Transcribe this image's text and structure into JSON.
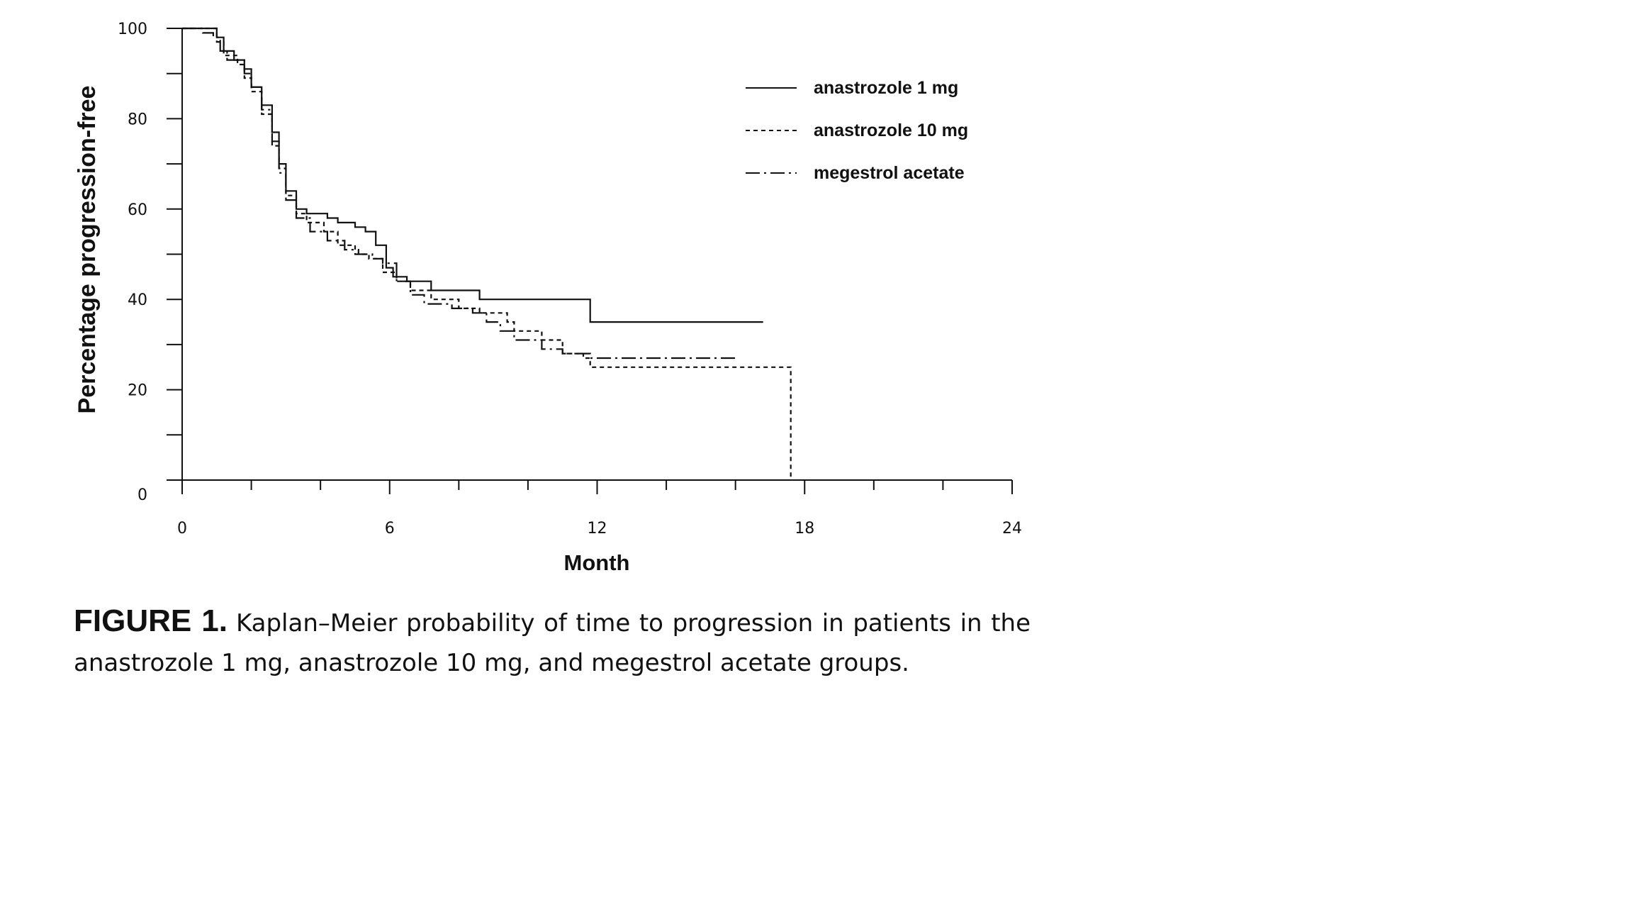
{
  "caption": {
    "label": "FIGURE 1.",
    "text": "Kaplan–Meier probability of time to progression in patients in the anastrozole 1 mg, anastrozole 10 mg, and megestrol acetate groups."
  },
  "chart_data": {
    "type": "line",
    "step": true,
    "title": "",
    "xlabel": "Month",
    "ylabel": "Percentage progression-free",
    "xlim": [
      0,
      24
    ],
    "ylim": [
      0,
      100
    ],
    "xticks": [
      0,
      6,
      12,
      18,
      24
    ],
    "yticks": [
      0,
      20,
      40,
      60,
      80,
      100
    ],
    "grid": false,
    "legend": "top-right",
    "series": [
      {
        "name": "anastrozole 1 mg",
        "style": "solid",
        "points": [
          [
            0,
            100
          ],
          [
            0.8,
            100
          ],
          [
            1.0,
            98
          ],
          [
            1.2,
            95
          ],
          [
            1.5,
            93
          ],
          [
            1.8,
            91
          ],
          [
            2.0,
            87
          ],
          [
            2.3,
            83
          ],
          [
            2.6,
            77
          ],
          [
            2.8,
            70
          ],
          [
            3.0,
            64
          ],
          [
            3.3,
            60
          ],
          [
            3.6,
            59
          ],
          [
            4.2,
            58
          ],
          [
            4.5,
            57
          ],
          [
            5.0,
            56
          ],
          [
            5.3,
            55
          ],
          [
            5.6,
            52
          ],
          [
            5.9,
            47
          ],
          [
            6.1,
            45
          ],
          [
            6.5,
            44
          ],
          [
            7.2,
            42
          ],
          [
            8.6,
            40
          ],
          [
            9.5,
            40
          ],
          [
            11.8,
            35
          ],
          [
            16.8,
            35
          ]
        ]
      },
      {
        "name": "anastrozole 10 mg",
        "style": "dashed",
        "points": [
          [
            0,
            100
          ],
          [
            0.7,
            100
          ],
          [
            1.0,
            97
          ],
          [
            1.2,
            94
          ],
          [
            1.6,
            92
          ],
          [
            1.8,
            89
          ],
          [
            2.0,
            86
          ],
          [
            2.3,
            81
          ],
          [
            2.6,
            74
          ],
          [
            2.8,
            69
          ],
          [
            3.0,
            63
          ],
          [
            3.3,
            59
          ],
          [
            3.6,
            57
          ],
          [
            4.1,
            55
          ],
          [
            4.5,
            52
          ],
          [
            5.0,
            50
          ],
          [
            5.4,
            49
          ],
          [
            5.8,
            46
          ],
          [
            6.2,
            44
          ],
          [
            6.6,
            42
          ],
          [
            7.2,
            40
          ],
          [
            8.0,
            38
          ],
          [
            8.6,
            37
          ],
          [
            9.4,
            35
          ],
          [
            9.6,
            33
          ],
          [
            10.4,
            31
          ],
          [
            11.0,
            28
          ],
          [
            11.6,
            27
          ],
          [
            11.8,
            25
          ],
          [
            17.6,
            25
          ],
          [
            17.6,
            0
          ]
        ]
      },
      {
        "name": "megestrol acetate",
        "style": "dashdot",
        "points": [
          [
            0,
            100
          ],
          [
            0.5,
            100
          ],
          [
            0.6,
            99
          ],
          [
            0.9,
            98
          ],
          [
            1.1,
            95
          ],
          [
            1.3,
            93
          ],
          [
            1.8,
            90
          ],
          [
            2.0,
            87
          ],
          [
            2.3,
            82
          ],
          [
            2.6,
            75
          ],
          [
            2.8,
            68
          ],
          [
            3.0,
            62
          ],
          [
            3.3,
            58
          ],
          [
            3.7,
            55
          ],
          [
            4.2,
            53
          ],
          [
            4.7,
            51
          ],
          [
            5.1,
            50
          ],
          [
            5.5,
            49
          ],
          [
            5.8,
            48
          ],
          [
            6.2,
            44
          ],
          [
            6.6,
            41
          ],
          [
            7.0,
            39
          ],
          [
            7.8,
            38
          ],
          [
            8.4,
            37
          ],
          [
            8.8,
            35
          ],
          [
            9.2,
            33
          ],
          [
            9.6,
            31
          ],
          [
            10.4,
            29
          ],
          [
            11.0,
            28
          ],
          [
            11.8,
            27
          ],
          [
            16.1,
            27
          ]
        ]
      }
    ]
  }
}
